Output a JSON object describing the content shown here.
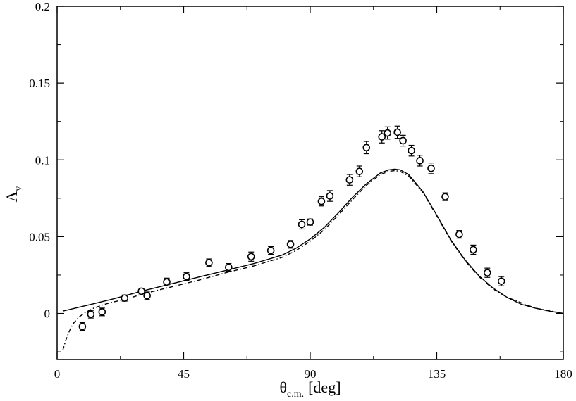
{
  "chart_data": {
    "type": "scatter",
    "title": "",
    "xlabel": {
      "main": "θ",
      "sub": "c.m.",
      "unit": "[deg]"
    },
    "ylabel": {
      "main": "A",
      "sub": "y"
    },
    "xlim": [
      0,
      180
    ],
    "ylim": [
      -0.03,
      0.2
    ],
    "xticks": [
      0,
      45,
      90,
      135,
      180
    ],
    "xtick_labels": [
      "0",
      "45",
      "90",
      "135",
      "180"
    ],
    "yticks": [
      0,
      0.05,
      0.1,
      0.15,
      0.2
    ],
    "ytick_labels": [
      "0",
      "0.05",
      "0.1",
      "0.15",
      "0.2"
    ],
    "grid": false,
    "legend": "none",
    "series": [
      {
        "kind": "scatter-errorbars",
        "marker": "open-circle",
        "color": "#000000",
        "points": [
          {
            "x": 9,
            "y": -0.0085,
            "err": 0.0025
          },
          {
            "x": 12,
            "y": -0.0005,
            "err": 0.0025
          },
          {
            "x": 16,
            "y": 0.001,
            "err": 0.0025
          },
          {
            "x": 24,
            "y": 0.01,
            "err": 0.002
          },
          {
            "x": 30,
            "y": 0.0145,
            "err": 0.0015
          },
          {
            "x": 32,
            "y": 0.0115,
            "err": 0.0025
          },
          {
            "x": 39,
            "y": 0.0205,
            "err": 0.0025
          },
          {
            "x": 46,
            "y": 0.024,
            "err": 0.0025
          },
          {
            "x": 54,
            "y": 0.033,
            "err": 0.0025
          },
          {
            "x": 61,
            "y": 0.03,
            "err": 0.0025
          },
          {
            "x": 69,
            "y": 0.037,
            "err": 0.003
          },
          {
            "x": 76,
            "y": 0.041,
            "err": 0.0025
          },
          {
            "x": 83,
            "y": 0.045,
            "err": 0.0025
          },
          {
            "x": 87,
            "y": 0.058,
            "err": 0.003
          },
          {
            "x": 90,
            "y": 0.0595,
            "err": 0.002
          },
          {
            "x": 94,
            "y": 0.073,
            "err": 0.003
          },
          {
            "x": 97,
            "y": 0.0765,
            "err": 0.0035
          },
          {
            "x": 104,
            "y": 0.087,
            "err": 0.0035
          },
          {
            "x": 107.5,
            "y": 0.0925,
            "err": 0.0035
          },
          {
            "x": 110,
            "y": 0.108,
            "err": 0.004
          },
          {
            "x": 115.5,
            "y": 0.115,
            "err": 0.004
          },
          {
            "x": 117.5,
            "y": 0.1175,
            "err": 0.004
          },
          {
            "x": 121,
            "y": 0.118,
            "err": 0.004
          },
          {
            "x": 123,
            "y": 0.1125,
            "err": 0.0035
          },
          {
            "x": 126,
            "y": 0.106,
            "err": 0.0035
          },
          {
            "x": 129,
            "y": 0.0995,
            "err": 0.0035
          },
          {
            "x": 133,
            "y": 0.0945,
            "err": 0.0035
          },
          {
            "x": 138,
            "y": 0.076,
            "err": 0.0025
          },
          {
            "x": 143,
            "y": 0.0515,
            "err": 0.0025
          },
          {
            "x": 148,
            "y": 0.0415,
            "err": 0.003
          },
          {
            "x": 153,
            "y": 0.0265,
            "err": 0.003
          },
          {
            "x": 158,
            "y": 0.021,
            "err": 0.003
          }
        ]
      },
      {
        "kind": "line",
        "style": "solid",
        "color": "#000000",
        "x": [
          2,
          10,
          20,
          30,
          40,
          50,
          60,
          70,
          80,
          85,
          90,
          95,
          100,
          105,
          110,
          115,
          118,
          120,
          122,
          125,
          130,
          135,
          140,
          145,
          150,
          155,
          160,
          165,
          170,
          175,
          180
        ],
        "y": [
          0.0015,
          0.005,
          0.0095,
          0.0145,
          0.019,
          0.0235,
          0.028,
          0.0325,
          0.038,
          0.0425,
          0.0485,
          0.056,
          0.0655,
          0.0755,
          0.0845,
          0.0915,
          0.0935,
          0.094,
          0.0935,
          0.0905,
          0.0795,
          0.064,
          0.048,
          0.035,
          0.0245,
          0.0165,
          0.0105,
          0.006,
          0.0035,
          0.0015,
          0.0
        ]
      },
      {
        "kind": "line",
        "style": "dash-dot",
        "color": "#000000",
        "x": [
          2,
          3,
          4,
          5,
          6,
          8,
          10,
          13,
          17,
          20,
          25,
          30,
          40,
          50,
          60,
          70,
          80,
          85,
          90,
          95,
          100,
          105,
          110,
          115,
          118,
          120,
          122,
          125,
          130,
          135,
          140,
          145,
          150,
          155,
          160,
          170,
          180
        ],
        "y": [
          -0.024,
          -0.018,
          -0.013,
          -0.009,
          -0.006,
          -0.002,
          0.0005,
          0.0035,
          0.006,
          0.0075,
          0.0095,
          0.0125,
          0.017,
          0.0215,
          0.0265,
          0.031,
          0.0365,
          0.041,
          0.047,
          0.0545,
          0.064,
          0.074,
          0.0835,
          0.0905,
          0.0925,
          0.093,
          0.0925,
          0.0895,
          0.079,
          0.0635,
          0.0475,
          0.0345,
          0.024,
          0.016,
          0.0105,
          0.0035,
          0.0
        ]
      }
    ]
  }
}
